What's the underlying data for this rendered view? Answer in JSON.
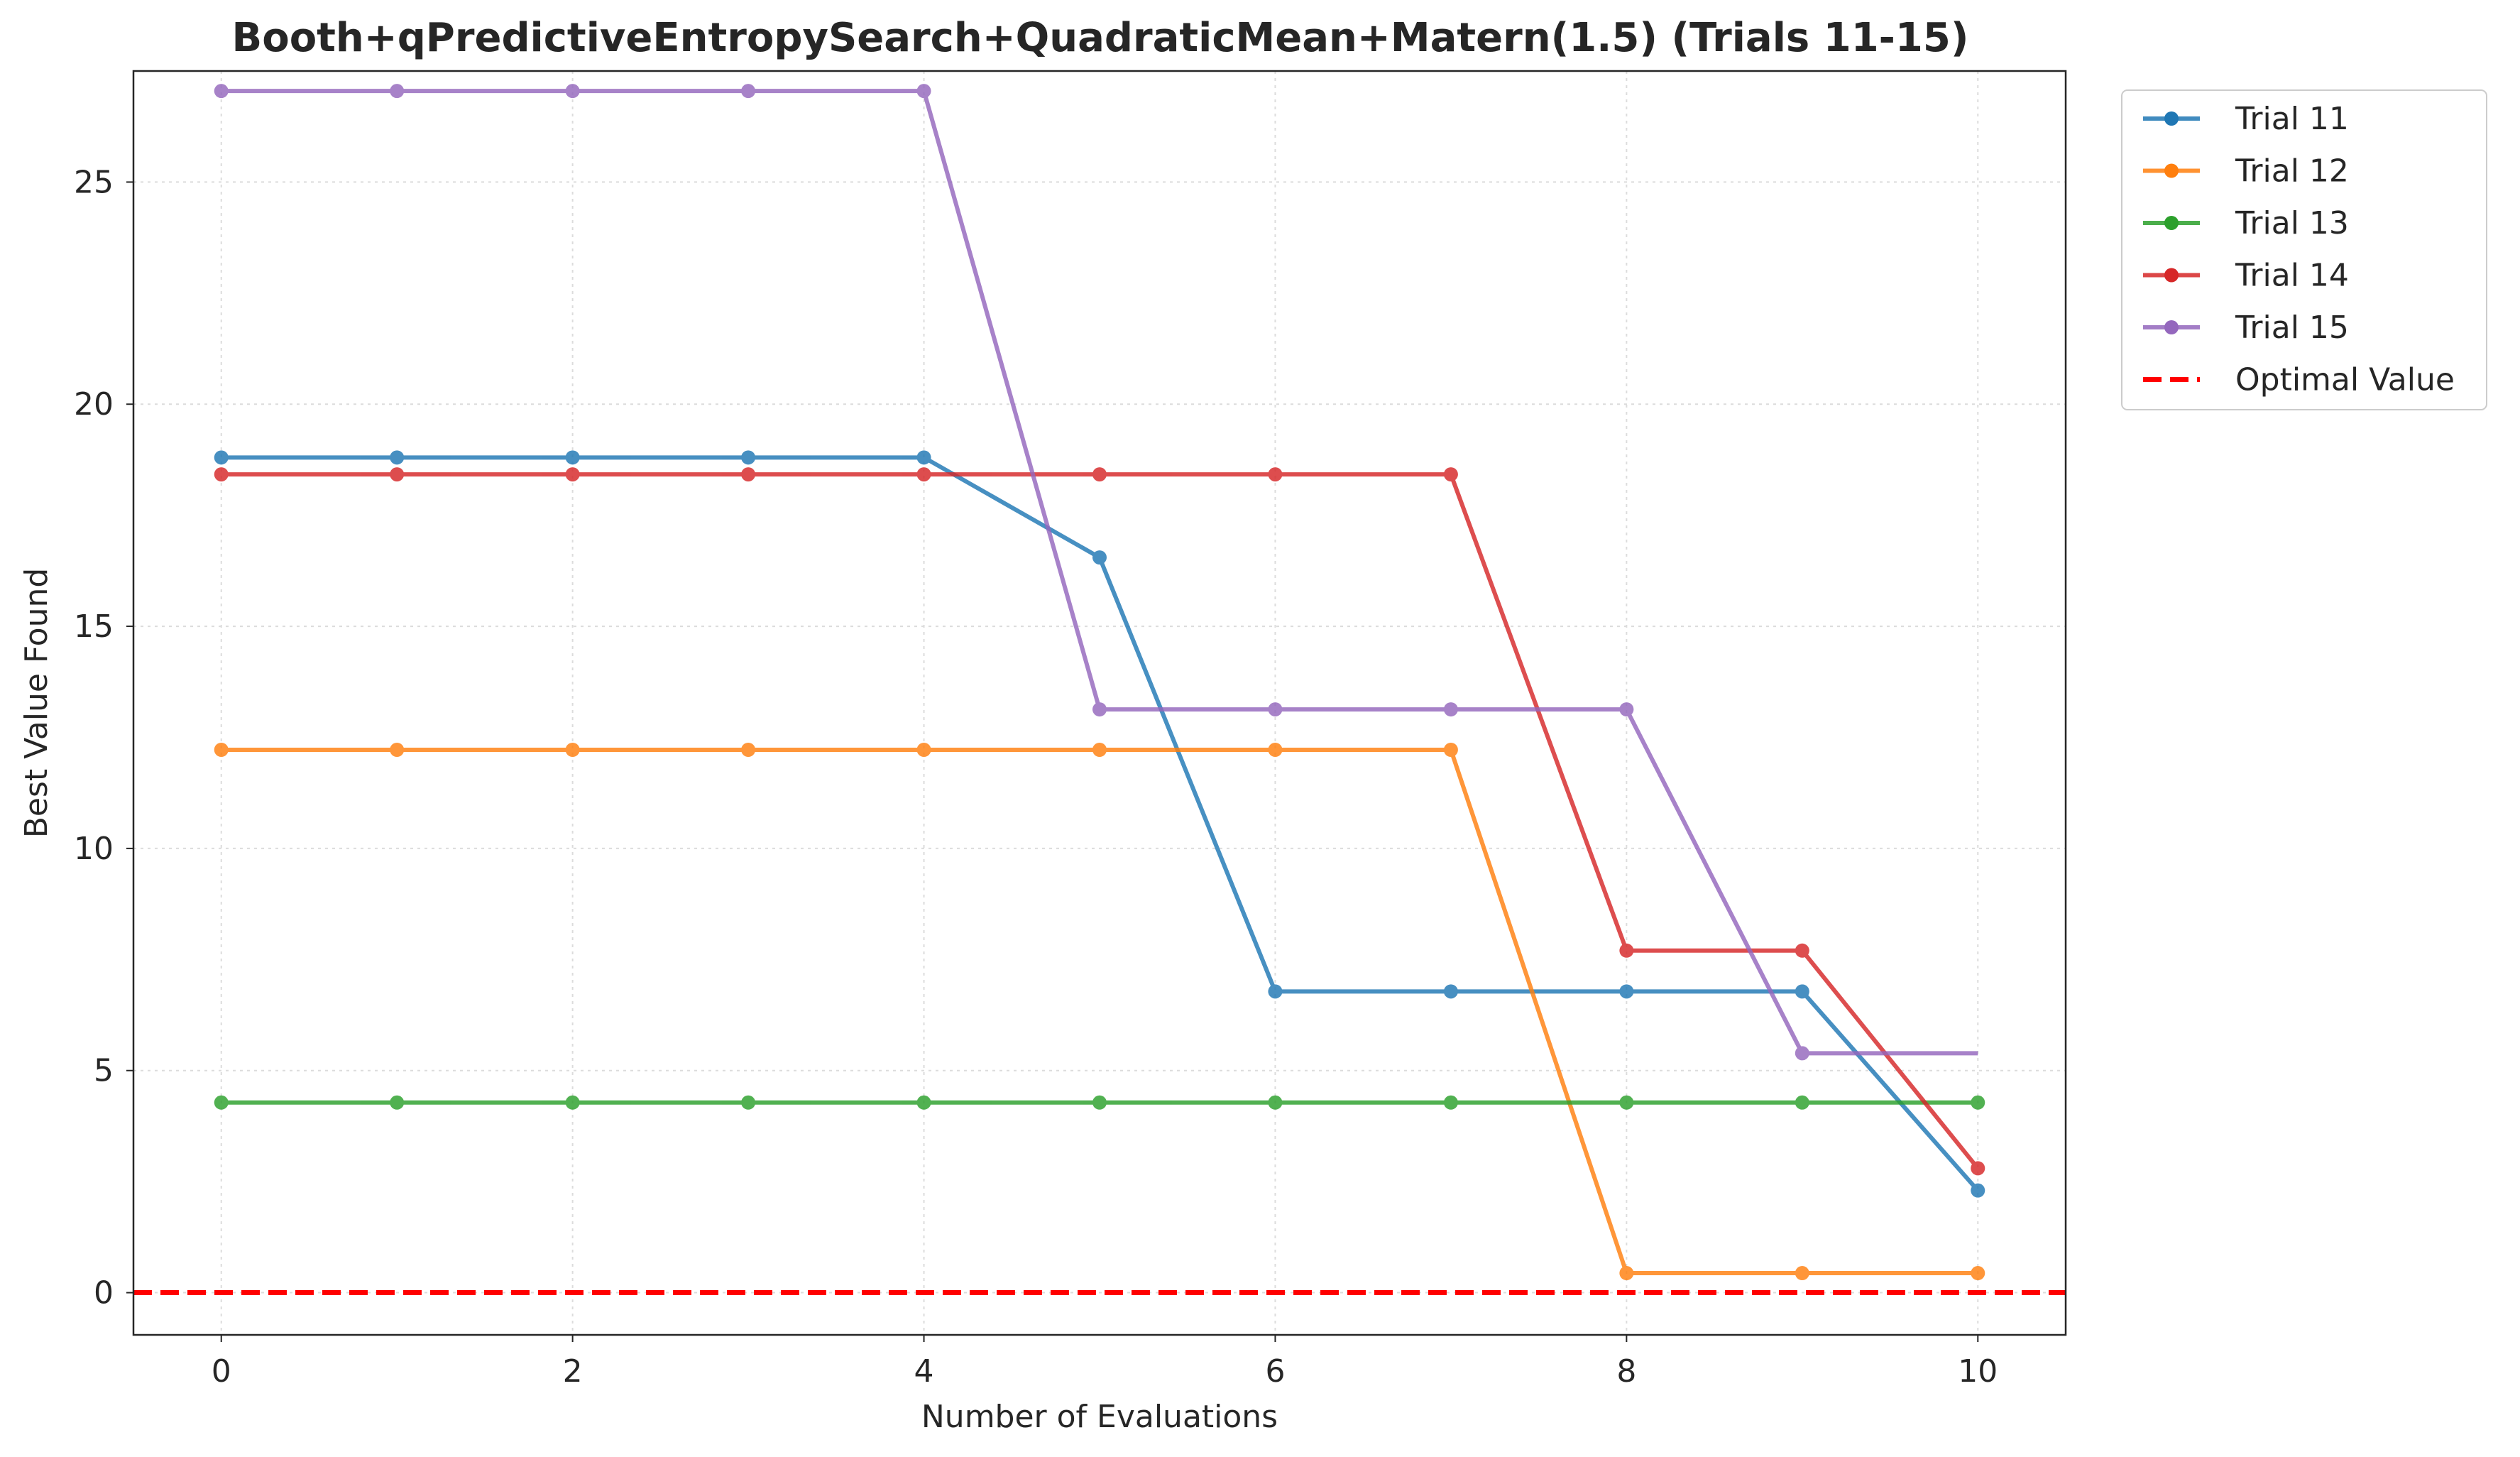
{
  "chart_data": {
    "type": "line",
    "title": "Booth+qPredictiveEntropySearch+QuadraticMean+Matern(1.5) (Trials 11-15)",
    "xlabel": "Number of Evaluations",
    "ylabel": "Best Value Found",
    "xlim": [
      -0.5,
      10.5
    ],
    "ylim": [
      -0.95,
      27.5
    ],
    "xticks": [
      0,
      2,
      4,
      6,
      8,
      10
    ],
    "yticks": [
      0,
      5,
      10,
      15,
      20,
      25
    ],
    "grid": true,
    "legend_position": "outside-top-right",
    "x": [
      0,
      1,
      2,
      3,
      4,
      5,
      6,
      7,
      8,
      9,
      10
    ],
    "series": [
      {
        "name": "Trial 11",
        "color": "#1f77b4",
        "marker": "circle",
        "values": [
          18.8,
          18.8,
          18.8,
          18.8,
          18.8,
          16.55,
          6.78,
          6.78,
          6.78,
          6.78,
          2.3
        ],
        "marked": [
          true,
          true,
          true,
          true,
          true,
          true,
          true,
          true,
          true,
          true,
          true
        ]
      },
      {
        "name": "Trial 12",
        "color": "#ff7f0e",
        "marker": "circle",
        "values": [
          12.22,
          12.22,
          12.22,
          12.22,
          12.22,
          12.22,
          12.22,
          12.22,
          0.44,
          0.44,
          0.44
        ],
        "marked": [
          true,
          true,
          true,
          true,
          true,
          true,
          true,
          true,
          true,
          true,
          true
        ]
      },
      {
        "name": "Trial 13",
        "color": "#2ca02c",
        "marker": "circle",
        "values": [
          4.28,
          4.28,
          4.28,
          4.28,
          4.28,
          4.28,
          4.28,
          4.28,
          4.28,
          4.28,
          4.28
        ],
        "marked": [
          true,
          true,
          true,
          true,
          true,
          true,
          true,
          true,
          true,
          true,
          true
        ]
      },
      {
        "name": "Trial 14",
        "color": "#d62728",
        "marker": "circle",
        "values": [
          18.42,
          18.42,
          18.42,
          18.42,
          18.42,
          18.42,
          18.42,
          18.42,
          7.7,
          7.7,
          2.8
        ],
        "marked": [
          true,
          true,
          true,
          true,
          true,
          true,
          true,
          true,
          true,
          true,
          true
        ]
      },
      {
        "name": "Trial 15",
        "color": "#9467bd",
        "marker": "circle",
        "values": [
          27.05,
          27.05,
          27.05,
          27.05,
          27.05,
          13.13,
          13.13,
          13.13,
          13.13,
          5.39,
          5.39
        ],
        "marked": [
          true,
          true,
          true,
          true,
          true,
          true,
          true,
          true,
          true,
          true,
          false
        ]
      }
    ],
    "reference_lines": [
      {
        "name": "Optimal Value",
        "y": 0,
        "color": "#ff0000",
        "style": "dashed"
      }
    ]
  }
}
